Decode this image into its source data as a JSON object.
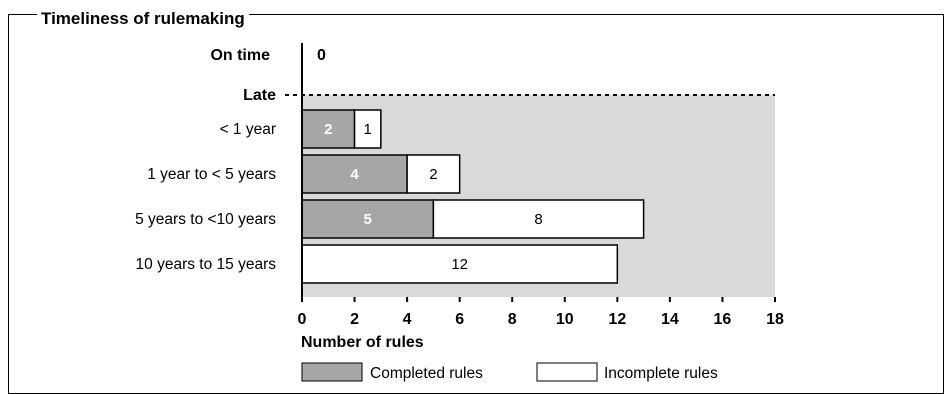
{
  "chart_data": {
    "type": "bar",
    "orientation": "horizontal",
    "stacked": true,
    "title": "Timeliness of rulemaking",
    "xlabel": "Number of rules",
    "ylabel": "",
    "xlim": [
      0,
      18
    ],
    "xticks": [
      "0",
      "2",
      "4",
      "6",
      "8",
      "10",
      "12",
      "14",
      "16",
      "18"
    ],
    "on_time": {
      "label": "On time",
      "value_label": "0"
    },
    "late_label": "Late",
    "categories": [
      "< 1 year",
      "1 year to < 5 years",
      "5 years to <10 years",
      "10 years to 15 years"
    ],
    "series": [
      {
        "name": "Completed rules",
        "values": [
          2,
          4,
          5,
          0
        ],
        "color": "#a6a6a6",
        "label_color": "#ffffff"
      },
      {
        "name": "Incomplete rules",
        "values": [
          1,
          2,
          8,
          12
        ],
        "color": "#ffffff",
        "label_color": "#000000"
      }
    ],
    "background_color": "#d9d9d9",
    "legend_position": "bottom"
  }
}
